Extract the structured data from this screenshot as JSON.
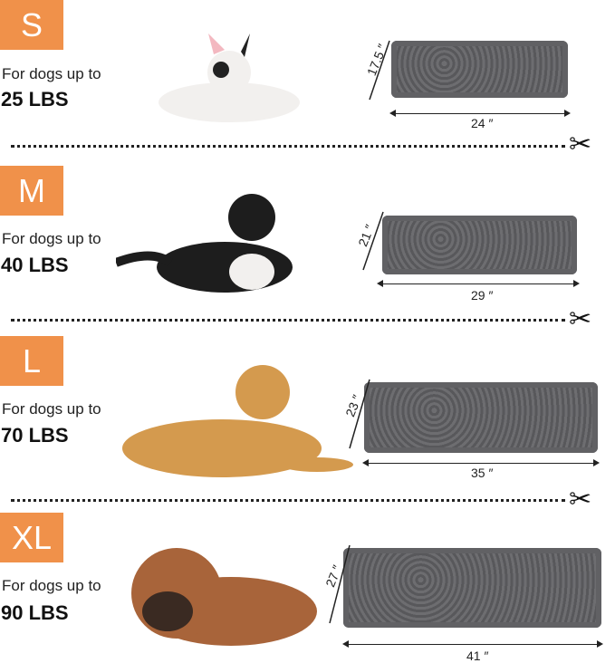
{
  "sizes": [
    {
      "size": "S",
      "caption": "For dogs up to",
      "weight": "25 LBS",
      "width": "24 ″",
      "length": "17.5 ″",
      "dog_color": "#f2f0ee"
    },
    {
      "size": "M",
      "caption": "For dogs up to",
      "weight": "40 LBS",
      "width": "29 ″",
      "length": "21 ″",
      "dog_color": "#1d1d1d"
    },
    {
      "size": "L",
      "caption": "For dogs up to",
      "weight": "70 LBS",
      "width": "35 ″",
      "length": "23 ″",
      "dog_color": "#d49a4e"
    },
    {
      "size": "XL",
      "caption": "For dogs up to",
      "weight": "90 LBS",
      "width": "41 ″",
      "length": "27 ″",
      "dog_color": "#a8643a"
    }
  ],
  "colors": {
    "badge": "#f0914a",
    "mat": "#5f5f62"
  },
  "icons": {
    "cut": "scissors-icon"
  }
}
